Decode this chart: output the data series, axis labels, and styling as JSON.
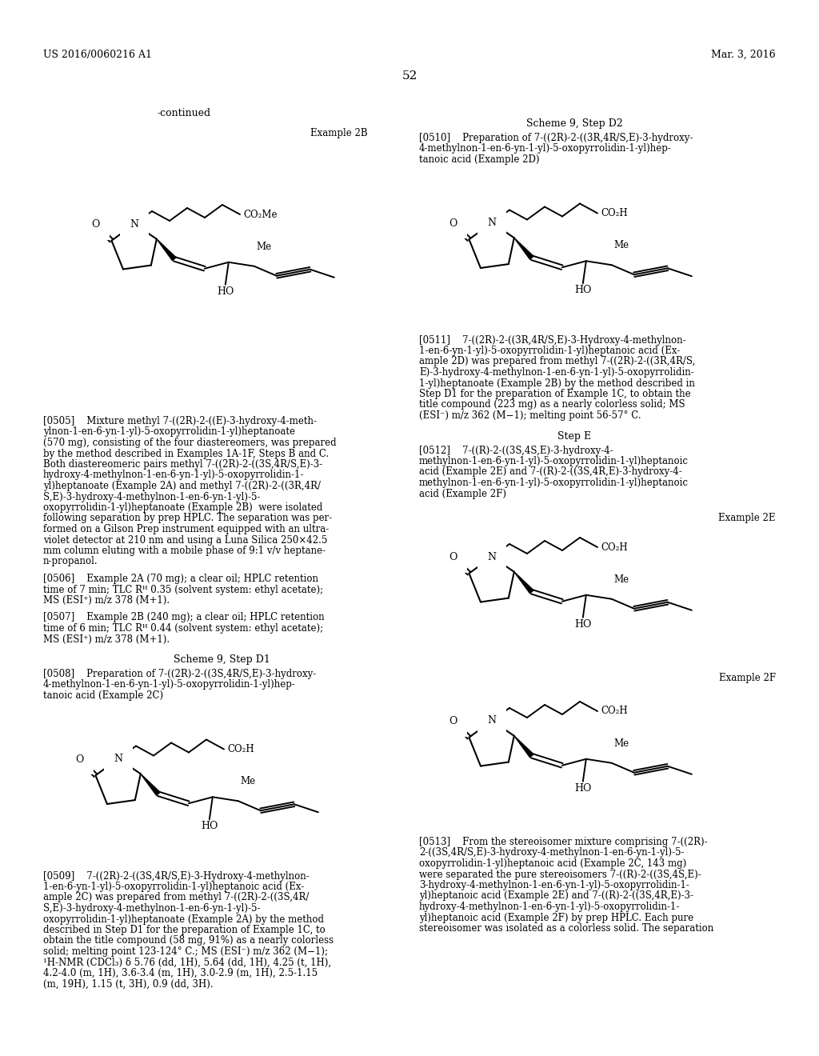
{
  "bg_color": "#ffffff",
  "header_left": "US 2016/0060216 A1",
  "header_right": "Mar. 3, 2016",
  "page_number": "52"
}
